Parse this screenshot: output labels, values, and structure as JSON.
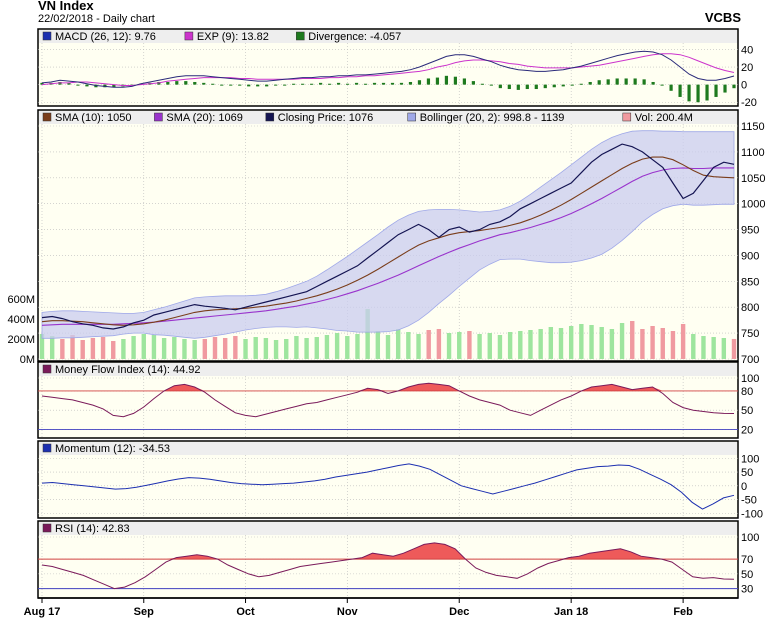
{
  "header": {
    "title": "VN Index",
    "subtitle": "22/02/2018 - Daily chart",
    "brand": "VCBS"
  },
  "chart_data": [
    {
      "type": "line",
      "panel": "macd",
      "legend": [
        {
          "label": "MACD (26, 12): 9.76",
          "color": "#1c2fb0"
        },
        {
          "label": "EXP (9): 13.82",
          "color": "#cc33cc"
        },
        {
          "label": "Divergence: -4.057",
          "color": "#1e7a1e"
        }
      ],
      "y_ticks": [
        40,
        20,
        0,
        -20
      ],
      "ylim": [
        -22,
        45
      ],
      "series": [
        {
          "name": "MACD",
          "color": "#2a2a7a",
          "values": [
            2,
            3,
            5,
            4,
            3,
            1,
            -1,
            -2,
            -3,
            -3,
            -2,
            1,
            3,
            5,
            7,
            9,
            10,
            10,
            10,
            9,
            8,
            7,
            6,
            5,
            4,
            4,
            5,
            6,
            7,
            8,
            8,
            9,
            9,
            10,
            10,
            11,
            11,
            12,
            13,
            14,
            15,
            17,
            20,
            24,
            28,
            32,
            34,
            34,
            32,
            29,
            26,
            22,
            19,
            17,
            16,
            15,
            15,
            16,
            17,
            19,
            21,
            24,
            27,
            30,
            33,
            35,
            37,
            38,
            37,
            34,
            28,
            20,
            12,
            7,
            5,
            5,
            7,
            9.76
          ]
        },
        {
          "name": "EXP",
          "color": "#cc33cc",
          "values": [
            0,
            1,
            2,
            2,
            3,
            3,
            2,
            1,
            0,
            -1,
            -1,
            0,
            1,
            2,
            4,
            5,
            6,
            7,
            8,
            8,
            8,
            8,
            7,
            7,
            6,
            6,
            6,
            6,
            6,
            7,
            7,
            7,
            8,
            8,
            9,
            9,
            10,
            10,
            11,
            12,
            13,
            14,
            15,
            17,
            20,
            22,
            25,
            27,
            28,
            28,
            27,
            26,
            24,
            23,
            21,
            20,
            19,
            19,
            19,
            19,
            20,
            21,
            22,
            24,
            26,
            28,
            30,
            32,
            34,
            35,
            35,
            34,
            31,
            27,
            23,
            19,
            16,
            13.82
          ]
        },
        {
          "name": "Divergence",
          "color": "#1e7a1e",
          "style": "bar",
          "values": [
            2,
            2,
            3,
            2,
            0,
            -2,
            -3,
            -3,
            -3,
            -2,
            -1,
            1,
            2,
            3,
            3,
            4,
            4,
            3,
            2,
            1,
            0,
            -1,
            -1,
            -2,
            -2,
            -2,
            -1,
            0,
            1,
            1,
            1,
            2,
            1,
            2,
            1,
            2,
            1,
            2,
            2,
            2,
            2,
            3,
            5,
            7,
            8,
            10,
            9,
            7,
            4,
            1,
            -1,
            -4,
            -5,
            -6,
            -5,
            -5,
            -4,
            -3,
            -2,
            0,
            1,
            3,
            5,
            6,
            7,
            7,
            7,
            6,
            3,
            -1,
            -7,
            -14,
            -19,
            -20,
            -18,
            -14,
            -9,
            -4.057
          ]
        }
      ]
    },
    {
      "type": "line",
      "panel": "price",
      "legend": [
        {
          "label": "SMA (10): 1050",
          "color": "#7a3d1a"
        },
        {
          "label": "SMA (20): 1069",
          "color": "#9933cc"
        },
        {
          "label": "Closing Price: 1076",
          "color": "#141452"
        },
        {
          "label": "Bollinger (20, 2): 998.8 - 1139",
          "color": "#9fa8e8"
        },
        {
          "label": "Vol: 200.4M",
          "color": "#f09aa0"
        }
      ],
      "x_labels": [
        "Aug 17",
        "Sep",
        "Oct",
        "Nov",
        "Dec",
        "Jan 18",
        "Feb"
      ],
      "x_label_positions": [
        0,
        10,
        20,
        30,
        41,
        52,
        63
      ],
      "y_ticks": [
        1150,
        1100,
        1050,
        1000,
        950,
        900,
        850,
        800,
        750,
        700
      ],
      "ylim": [
        700,
        1150
      ],
      "volume_ticks": [
        "600M",
        "400M",
        "200M",
        "0M"
      ],
      "volume_ylim": [
        0,
        600
      ],
      "series": [
        {
          "name": "Closing Price",
          "color": "#141452",
          "values": [
            780,
            782,
            778,
            772,
            768,
            765,
            760,
            758,
            762,
            770,
            775,
            785,
            790,
            795,
            800,
            805,
            802,
            800,
            798,
            795,
            800,
            805,
            810,
            815,
            820,
            825,
            830,
            840,
            850,
            860,
            870,
            880,
            895,
            910,
            925,
            940,
            950,
            960,
            950,
            935,
            950,
            955,
            945,
            950,
            960,
            965,
            975,
            990,
            1000,
            1010,
            1020,
            1030,
            1040,
            1060,
            1080,
            1095,
            1105,
            1115,
            1110,
            1100,
            1085,
            1070,
            1040,
            1010,
            1020,
            1045,
            1070,
            1080,
            1076
          ]
        },
        {
          "name": "SMA (10)",
          "color": "#7a3d1a",
          "values": [
            772,
            774,
            774,
            773,
            772,
            770,
            768,
            766,
            765,
            766,
            768,
            771,
            775,
            780,
            785,
            790,
            793,
            795,
            796,
            797,
            798,
            800,
            802,
            805,
            808,
            812,
            817,
            822,
            828,
            835,
            843,
            852,
            862,
            873,
            885,
            897,
            909,
            920,
            928,
            934,
            940,
            944,
            946,
            948,
            951,
            954,
            958,
            963,
            970,
            978,
            987,
            997,
            1008,
            1020,
            1032,
            1044,
            1056,
            1068,
            1078,
            1086,
            1090,
            1090,
            1085,
            1075,
            1064,
            1055,
            1052,
            1051,
            1050
          ]
        },
        {
          "name": "SMA (20)",
          "color": "#9933cc",
          "values": [
            765,
            766,
            767,
            767,
            767,
            767,
            767,
            767,
            768,
            769,
            770,
            771,
            773,
            775,
            777,
            779,
            781,
            783,
            785,
            787,
            789,
            791,
            793,
            796,
            799,
            802,
            806,
            810,
            815,
            820,
            826,
            832,
            839,
            846,
            854,
            862,
            871,
            880,
            889,
            898,
            906,
            914,
            921,
            928,
            934,
            940,
            944,
            949,
            954,
            960,
            966,
            973,
            981,
            990,
            1000,
            1010,
            1021,
            1032,
            1043,
            1053,
            1060,
            1065,
            1068,
            1069,
            1068,
            1068,
            1069,
            1069,
            1069
          ]
        },
        {
          "name": "Bollinger Upper",
          "color": "#9fa8e8",
          "values": [
            790,
            792,
            793,
            793,
            792,
            791,
            790,
            789,
            788,
            788,
            790,
            795,
            800,
            806,
            812,
            818,
            820,
            821,
            822,
            822,
            822,
            823,
            825,
            830,
            836,
            843,
            850,
            860,
            872,
            885,
            898,
            912,
            926,
            940,
            955,
            968,
            978,
            985,
            988,
            989,
            989,
            988,
            986,
            984,
            985,
            988,
            995,
            1005,
            1018,
            1032,
            1046,
            1060,
            1075,
            1090,
            1105,
            1118,
            1128,
            1135,
            1140,
            1141,
            1141,
            1140,
            1140,
            1139,
            1139,
            1139,
            1139,
            1139,
            1139
          ]
        },
        {
          "name": "Bollinger Lower",
          "color": "#9fa8e8",
          "values": [
            740,
            740,
            741,
            741,
            742,
            743,
            744,
            745,
            748,
            750,
            750,
            747,
            746,
            744,
            742,
            740,
            742,
            745,
            748,
            752,
            756,
            759,
            761,
            762,
            762,
            761,
            762,
            760,
            758,
            755,
            754,
            752,
            752,
            752,
            753,
            756,
            764,
            775,
            790,
            807,
            823,
            840,
            856,
            872,
            883,
            892,
            893,
            893,
            890,
            888,
            886,
            886,
            887,
            890,
            895,
            902,
            914,
            929,
            946,
            965,
            979,
            990,
            996,
            999,
            997,
            997,
            998,
            999,
            998.8
          ]
        },
        {
          "name": "Volume",
          "color": "#f09aa0",
          "style": "bar",
          "values": [
            250,
            230,
            200,
            240,
            190,
            210,
            220,
            180,
            200,
            230,
            250,
            240,
            210,
            220,
            200,
            190,
            200,
            220,
            210,
            230,
            200,
            220,
            210,
            190,
            200,
            230,
            210,
            220,
            240,
            260,
            230,
            250,
            500,
            280,
            240,
            300,
            270,
            250,
            290,
            300,
            260,
            270,
            280,
            250,
            260,
            240,
            270,
            280,
            290,
            300,
            320,
            310,
            330,
            350,
            340,
            320,
            300,
            360,
            380,
            300,
            330,
            310,
            280,
            350,
            250,
            230,
            220,
            210,
            200.4
          ]
        }
      ]
    },
    {
      "type": "line",
      "panel": "mfi",
      "legend": [
        {
          "label": "Money Flow Index (14): 44.92",
          "color": "#7a1a5a"
        }
      ],
      "y_ticks": [
        100,
        80,
        50,
        20
      ],
      "ylim": [
        10,
        100
      ],
      "series": [
        {
          "name": "Money Flow Index",
          "color": "#7a1a5a",
          "values": [
            72,
            70,
            68,
            66,
            62,
            58,
            52,
            42,
            40,
            45,
            55,
            68,
            80,
            88,
            90,
            86,
            78,
            66,
            56,
            46,
            42,
            40,
            44,
            48,
            52,
            56,
            60,
            62,
            66,
            70,
            74,
            78,
            84,
            82,
            76,
            80,
            86,
            90,
            92,
            90,
            88,
            80,
            72,
            66,
            62,
            58,
            50,
            46,
            42,
            50,
            58,
            66,
            72,
            80,
            86,
            88,
            90,
            86,
            82,
            84,
            86,
            76,
            62,
            54,
            50,
            48,
            46,
            45,
            44.92
          ]
        }
      ]
    },
    {
      "type": "line",
      "panel": "momentum",
      "legend": [
        {
          "label": "Momentum (12): -34.53",
          "color": "#1c2fb0"
        }
      ],
      "y_ticks": [
        100,
        50,
        0,
        -50,
        -100
      ],
      "ylim": [
        -110,
        105
      ],
      "series": [
        {
          "name": "Momentum",
          "color": "#1c2fb0",
          "values": [
            10,
            12,
            8,
            4,
            0,
            -4,
            -8,
            -12,
            -10,
            -5,
            2,
            10,
            18,
            25,
            30,
            28,
            24,
            18,
            12,
            8,
            6,
            4,
            6,
            8,
            10,
            14,
            18,
            24,
            32,
            38,
            44,
            50,
            58,
            66,
            74,
            80,
            72,
            60,
            40,
            20,
            0,
            -10,
            -20,
            -30,
            -20,
            -10,
            0,
            10,
            22,
            34,
            46,
            58,
            64,
            70,
            72,
            76,
            74,
            60,
            42,
            24,
            4,
            -24,
            -60,
            -85,
            -66,
            -44,
            -34.53
          ]
        }
      ]
    },
    {
      "type": "line",
      "panel": "rsi",
      "legend": [
        {
          "label": "RSI (14): 42.83",
          "color": "#7a1a5a"
        }
      ],
      "y_ticks": [
        100,
        70,
        50,
        30
      ],
      "ylim": [
        20,
        100
      ],
      "series": [
        {
          "name": "RSI",
          "color": "#7a1a5a",
          "values": [
            62,
            60,
            56,
            52,
            48,
            42,
            36,
            30,
            32,
            38,
            46,
            56,
            66,
            72,
            74,
            76,
            74,
            70,
            62,
            56,
            50,
            46,
            48,
            52,
            56,
            60,
            62,
            64,
            66,
            68,
            70,
            72,
            78,
            76,
            74,
            78,
            84,
            90,
            92,
            90,
            84,
            70,
            58,
            52,
            48,
            46,
            44,
            50,
            58,
            64,
            68,
            72,
            74,
            78,
            80,
            82,
            84,
            80,
            74,
            72,
            70,
            66,
            56,
            46,
            44,
            45,
            43,
            42.83
          ]
        }
      ]
    }
  ]
}
